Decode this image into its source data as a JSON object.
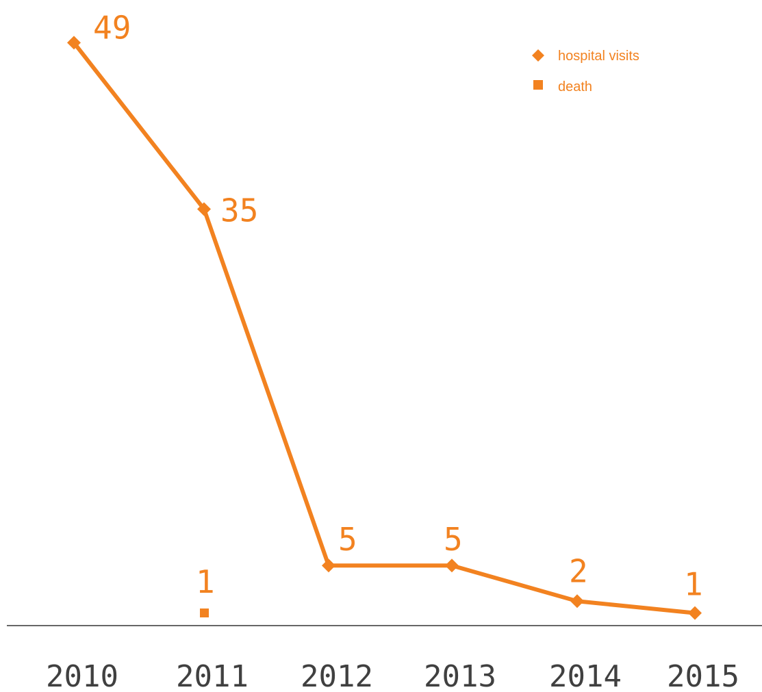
{
  "chart_data": {
    "type": "line",
    "categories": [
      "2010",
      "2011",
      "2012",
      "2013",
      "2014",
      "2015"
    ],
    "series": [
      {
        "name": "hospital visits",
        "marker": "diamond",
        "values": [
          49,
          35,
          5,
          5,
          2,
          1
        ]
      },
      {
        "name": "death",
        "marker": "square",
        "values": [
          null,
          1,
          null,
          null,
          null,
          null
        ]
      }
    ],
    "data_labels": {
      "hospital_visits": [
        "49",
        "35",
        "5",
        "5",
        "2",
        "1"
      ],
      "death": [
        "",
        "1",
        "",
        "",
        "",
        ""
      ]
    },
    "ylim": [
      0,
      50
    ],
    "grid": false,
    "legend": "top-right",
    "colors": {
      "series": "#f28220",
      "axis": "#666666",
      "tick_text": "#404040"
    }
  }
}
